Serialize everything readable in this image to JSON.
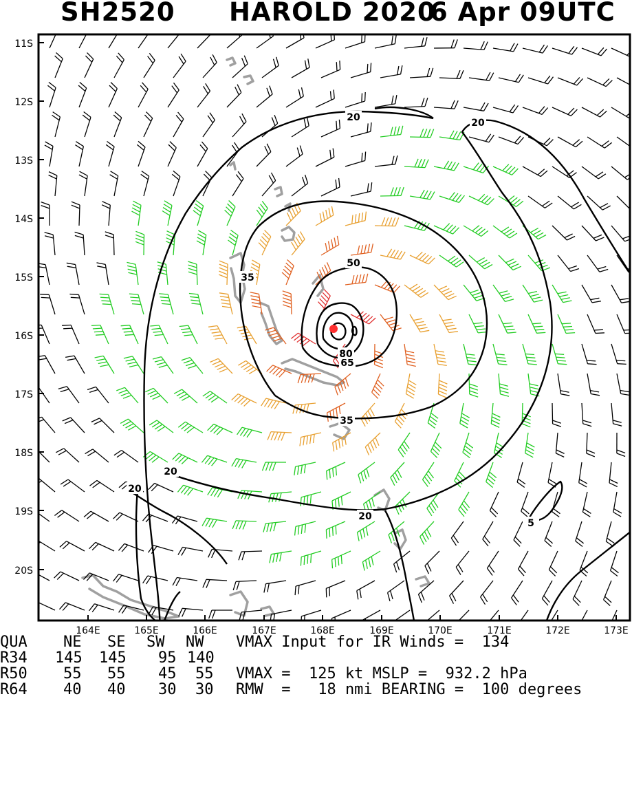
{
  "title": {
    "storm_id": "SH2520",
    "storm_name_year": "HAROLD 2020",
    "datetime": "6 Apr 09UTC"
  },
  "map": {
    "lat_labels": [
      "11S",
      "12S",
      "13S",
      "14S",
      "15S",
      "16S",
      "17S",
      "18S",
      "19S",
      "20S"
    ],
    "lon_labels": [
      "164E",
      "165E",
      "166E",
      "167E",
      "168E",
      "169E",
      "170E",
      "171E",
      "172E",
      "173E"
    ],
    "contour_labels": [
      "20",
      "20",
      "20",
      "20",
      "20",
      "35",
      "35",
      "50",
      "65",
      "80",
      "5"
    ],
    "wind_barb_colors": {
      "below_34kt": "#000000",
      "34_to_49kt": "#22cc22",
      "50_to_63kt": "#e8a030",
      "64_to_99kt": "#e06020",
      "100kt_plus": "#e03030"
    },
    "land_color": "#a0a0a0",
    "storm_center_marker_color": "#ff3030"
  },
  "info": {
    "header": [
      "QUA",
      "NE",
      "SE",
      "SW",
      "NW"
    ],
    "rows": [
      {
        "label": "R34",
        "values": [
          "145",
          "145",
          "95",
          "140"
        ]
      },
      {
        "label": "R50",
        "values": [
          "55",
          "55",
          "45",
          "55"
        ]
      },
      {
        "label": "R64",
        "values": [
          "40",
          "40",
          "30",
          "30"
        ]
      }
    ],
    "line1": "VMAX Input for IR Winds =  134",
    "line2": "VMAX =  125 kt MSLP =  932.2 hPa",
    "line3": "RMW  =   18 nmi BEARING =  100 degrees"
  }
}
